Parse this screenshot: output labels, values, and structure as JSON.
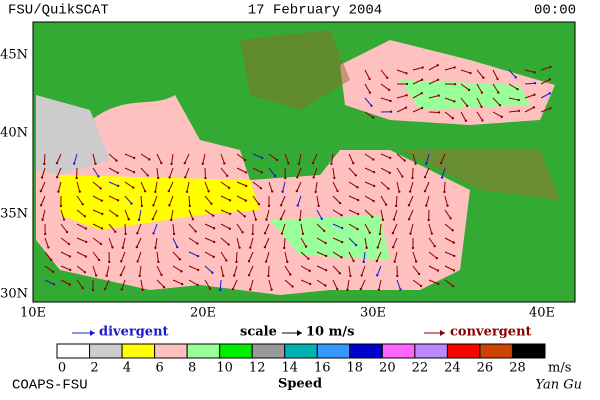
{
  "header": {
    "left": "FSU/QuikSCAT",
    "center": "17 February 2004",
    "right": "00:00"
  },
  "map": {
    "lat_labels": [
      "45N",
      "40N",
      "35N",
      "30N"
    ],
    "lon_labels": [
      "10E",
      "20E",
      "30E",
      "40E"
    ]
  },
  "legend": {
    "divergent": "divergent",
    "scale": "scale",
    "scale_value": "10 m/s",
    "convergent": "convergent"
  },
  "colorbar": {
    "ticks": [
      0,
      2,
      4,
      6,
      8,
      10,
      12,
      14,
      16,
      18,
      20,
      22,
      24,
      26,
      28
    ],
    "colors": [
      "#ffffff",
      "#cccccc",
      "#ffff00",
      "#ffc0c0",
      "#99ff99",
      "#00ee00",
      "#999999",
      "#00b3b3",
      "#3399ff",
      "#0000cc",
      "#ff66ff",
      "#bb88ff",
      "#ff0000",
      "#cc4400",
      "#000000"
    ],
    "unit": "m/s",
    "title": "Speed"
  },
  "footer": {
    "left": "COAPS-FSU",
    "right": "Yan Gu"
  }
}
